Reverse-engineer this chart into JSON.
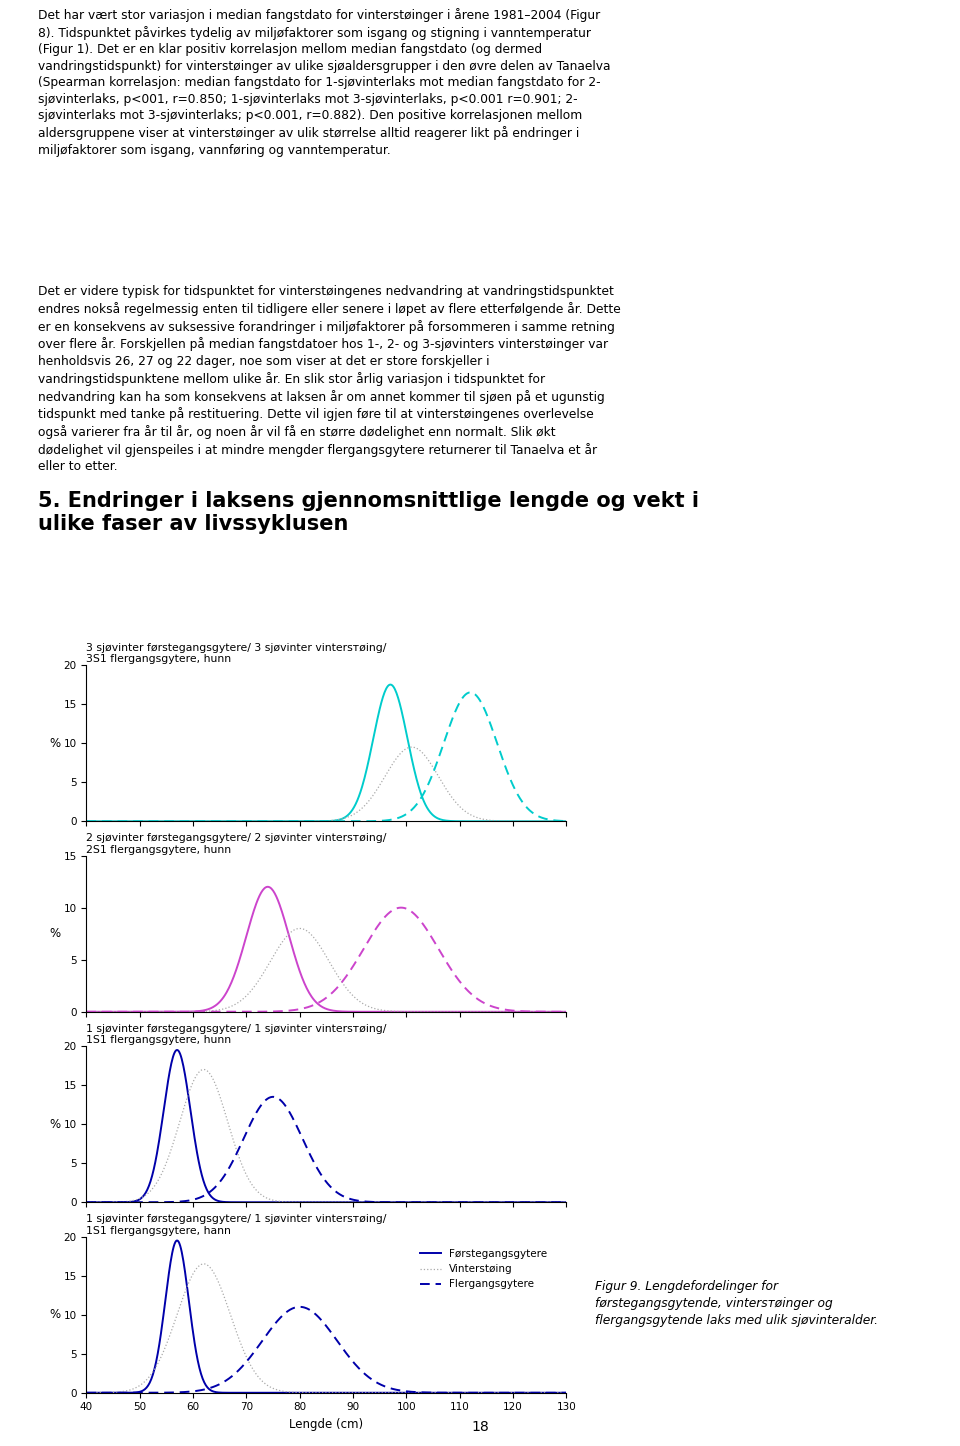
{
  "text_block1": "Det har vært stor variasjon i median fangstdato for vinterstøinger i årene 1981–2004 (Figur\n8). Tidspunktet påvirkes tydelig av miljøfaktorer som isgang og stigning i vanntemperatur\n(Figur 1). Det er en klar positiv korrelasjon mellom median fangstdato (og dermed\nvandringstidspunkt) for vinterstøinger av ulike sjøaldersgrupper i den øvre delen av Tanaelva\n(Spearman korrelasjon: median fangstdato for 1-sjøvinterlaks mot median fangstdato for 2-\nsjøvinterlaks, p<001, r=0.850; 1-sjøvinterlaks mot 3-sjøvinterlaks, p<0.001 r=0.901; 2-\nsjøvinterlaks mot 3-sjøvinterlaks; p<0.001, r=0.882). Den positive korrelasjonen mellom\naldersgruppene viser at vinterstøinger av ulik størrelse alltid reagerer likt på endringer i\nmiljøfaktorer som isgang, vannføring og vanntemperatur.",
  "text_block2": "Det er videre typisk for tidspunktet for vinterstøingenes nedvandring at vandringstidspunktet\nendres nokså regelmessig enten til tidligere eller senere i løpet av flere etterfølgende år. Dette\ner en konsekvens av suksessive forandringer i miljøfaktorer på forsommeren i samme retning\nover flere år. Forskjellen på median fangstdatoer hos 1-, 2- og 3-sjøvinters vinterstøinger var\nhenholdsvis 26, 27 og 22 dager, noe som viser at det er store forskjeller i\nvandringstidspunktene mellom ulike år. En slik stor årlig variasjon i tidspunktet for\nnedvandring kan ha som konsekvens at laksen år om annet kommer til sjøen på et ugunstig\ntidspunkt med tanke på restituering. Dette vil igjen føre til at vinterstøingenes overlevelse\nogså varierer fra år til år, og noen år vil få en større dødelighet enn normalt. Slik økt\ndødelighet vil gjenspeiles i at mindre mengder flergangsgytere returnerer til Tanaelva et år\neller to etter.",
  "section_title_line1": "5. Endringer i laksens gjennomsnittlige lengde og vekt i",
  "section_title_line2": "ulike faser av livssyklusen",
  "page_number": "18",
  "subplots": [
    {
      "title_line1": "3 sjøvinter førstegangsgytere/ 3 sjøvinter vintersтøing/",
      "title_line2": "3S1 flergangsgytere, hunn",
      "color": "#00CCCC",
      "ymax": 20,
      "yticks": [
        0,
        5,
        10,
        15,
        20
      ],
      "curves": {
        "forste": {
          "mean": 97,
          "std": 3.2,
          "peak": 17.5
        },
        "vinter": {
          "mean": 101,
          "std": 5.0,
          "peak": 9.5
        },
        "flergang": {
          "mean": 112,
          "std": 5.0,
          "peak": 16.5
        }
      }
    },
    {
      "title_line1": "2 sjøvinter førstegangsgytere/ 2 sjøvinter vintersтøing/",
      "title_line2": "2S1 flergangsgytere, hunn",
      "color": "#CC44CC",
      "ymax": 15,
      "yticks": [
        0,
        5,
        10,
        15
      ],
      "curves": {
        "forste": {
          "mean": 74,
          "std": 4.0,
          "peak": 12.0
        },
        "vinter": {
          "mean": 80,
          "std": 5.5,
          "peak": 8.0
        },
        "flergang": {
          "mean": 99,
          "std": 7.0,
          "peak": 10.0
        }
      }
    },
    {
      "title_line1": "1 sjøvinter førstegangsgytere/ 1 sjøvinter vintersтøing/",
      "title_line2": "1S1 flergangsgytere, hunn",
      "color": "#0000AA",
      "ymax": 20,
      "yticks": [
        0,
        5,
        10,
        15,
        20
      ],
      "curves": {
        "forste": {
          "mean": 57,
          "std": 2.5,
          "peak": 19.5
        },
        "vinter": {
          "mean": 62,
          "std": 4.5,
          "peak": 17.0
        },
        "flergang": {
          "mean": 75,
          "std": 5.5,
          "peak": 13.5
        }
      }
    },
    {
      "title_line1": "1 sjøvinter førstegangsgytere/ 1 sjøvinter vintersтøing/",
      "title_line2": "1S1 flergangsgytere, hann",
      "color": "#0000AA",
      "ymax": 20,
      "yticks": [
        0,
        5,
        10,
        15,
        20
      ],
      "curves": {
        "forste": {
          "mean": 57,
          "std": 2.2,
          "peak": 19.5
        },
        "vinter": {
          "mean": 62,
          "std": 5.0,
          "peak": 16.5
        },
        "flergang": {
          "mean": 80,
          "std": 7.0,
          "peak": 11.0
        }
      }
    }
  ],
  "xlabel": "Lengde (cm)",
  "ylabel": "%",
  "xmin": 40,
  "xmax": 130,
  "xticks": [
    40,
    50,
    60,
    70,
    80,
    90,
    100,
    110,
    120,
    130
  ],
  "legend_labels": [
    "Førstegangsgytere",
    "Vintersтøing",
    "Flergangsgytere"
  ],
  "figcaption": "Figur 9. Lengdefordelinger for\nførstegangsgytende, vintersтøinger og\nflergangsgytende laks med ulik sjøvinteralder.",
  "background_color": "#ffffff"
}
